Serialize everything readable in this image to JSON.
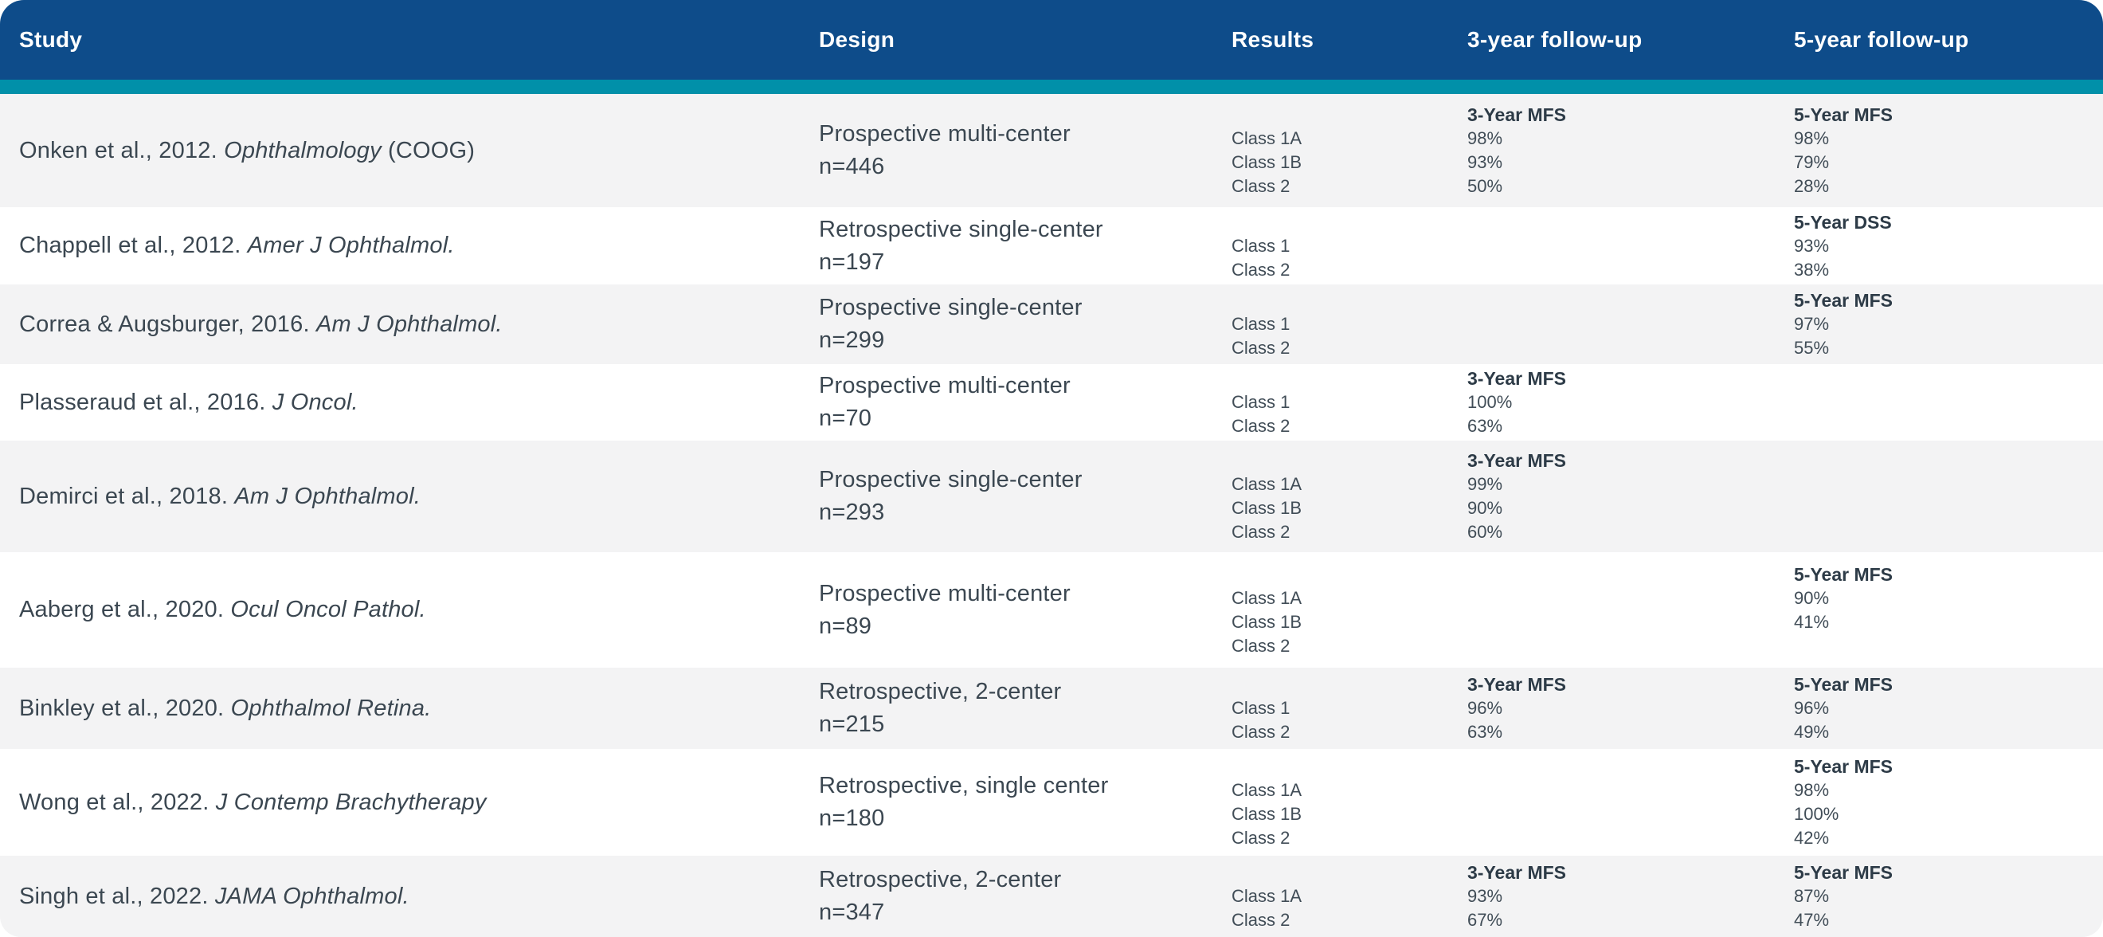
{
  "colors": {
    "header_bg": "#0e4c8a",
    "accent_bar": "#0190a9",
    "row_alt_bg": "#f3f3f4",
    "row_bg": "#ffffff",
    "header_text": "#ffffff",
    "body_text": "#3b4751",
    "bold_text": "#2d3b47"
  },
  "header": {
    "columns": [
      "Study",
      "Design",
      "Results",
      "3-year follow-up",
      "5-year follow-up"
    ]
  },
  "rows": [
    {
      "study": {
        "plain": "Onken et al., 2012. ",
        "italic": "Ophthalmology",
        "suffix": " (COOG)"
      },
      "design": [
        "Prospective multi-center",
        "n=446"
      ],
      "results_classes": [
        "Class 1A",
        "Class 1B",
        "Class 2"
      ],
      "followup_3yr": {
        "header": "3-Year MFS",
        "values": [
          "98%",
          "93%",
          "50%"
        ]
      },
      "followup_5yr": {
        "header": "5-Year MFS",
        "values": [
          "98%",
          "79%",
          "28%"
        ]
      }
    },
    {
      "study": {
        "plain": "Chappell et al., 2012. ",
        "italic": "Amer J Ophthalmol.",
        "suffix": ""
      },
      "design": [
        "Retrospective single-center",
        "n=197"
      ],
      "results_classes": [
        "Class 1",
        "Class 2"
      ],
      "followup_3yr": {
        "header": "",
        "values": []
      },
      "followup_5yr": {
        "header": "5-Year DSS",
        "values": [
          "93%",
          "38%"
        ]
      }
    },
    {
      "study": {
        "plain": "Correa & Augsburger, 2016. ",
        "italic": "Am J Ophthalmol.",
        "suffix": ""
      },
      "design": [
        "Prospective single-center",
        "n=299"
      ],
      "results_classes": [
        "Class 1",
        "Class 2"
      ],
      "followup_3yr": {
        "header": "",
        "values": []
      },
      "followup_5yr": {
        "header": "5-Year MFS",
        "values": [
          "97%",
          "55%"
        ]
      }
    },
    {
      "study": {
        "plain": "Plasseraud et al., 2016. ",
        "italic": "J Oncol.",
        "suffix": ""
      },
      "design": [
        "Prospective multi-center",
        "n=70"
      ],
      "results_classes": [
        "Class 1",
        "Class 2"
      ],
      "followup_3yr": {
        "header": "3-Year MFS",
        "values": [
          "100%",
          "63%"
        ]
      },
      "followup_5yr": {
        "header": "",
        "values": []
      }
    },
    {
      "study": {
        "plain": "Demirci et al., 2018. ",
        "italic": "Am J Ophthalmol.",
        "suffix": ""
      },
      "design": [
        "Prospective single-center",
        "n=293"
      ],
      "results_classes": [
        "Class 1A",
        "Class 1B",
        "Class 2"
      ],
      "followup_3yr": {
        "header": "3-Year MFS",
        "values": [
          "99%",
          "90%",
          "60%"
        ]
      },
      "followup_5yr": {
        "header": "",
        "values": []
      }
    },
    {
      "study": {
        "plain": "Aaberg et al., 2020. ",
        "italic": "Ocul Oncol Pathol.",
        "suffix": ""
      },
      "design": [
        "Prospective multi-center",
        "n=89"
      ],
      "results_classes": [
        "Class 1A",
        "Class 1B",
        "Class 2"
      ],
      "followup_3yr": {
        "header": "",
        "values": []
      },
      "followup_5yr": {
        "header": "5-Year MFS",
        "values": [
          "90%",
          "41%"
        ]
      }
    },
    {
      "study": {
        "plain": "Binkley et al., 2020. ",
        "italic": "Ophthalmol Retina.",
        "suffix": ""
      },
      "design": [
        "Retrospective, 2-center",
        "n=215"
      ],
      "results_classes": [
        "Class 1",
        "Class 2"
      ],
      "followup_3yr": {
        "header": "3-Year MFS",
        "values": [
          "96%",
          "63%"
        ]
      },
      "followup_5yr": {
        "header": "5-Year MFS",
        "values": [
          "96%",
          "49%"
        ]
      }
    },
    {
      "study": {
        "plain": "Wong et al., 2022. ",
        "italic": "J Contemp Brachytherapy",
        "suffix": ""
      },
      "design": [
        "Retrospective, single center",
        "n=180"
      ],
      "results_classes": [
        "Class 1A",
        "Class 1B",
        "Class 2"
      ],
      "followup_3yr": {
        "header": "",
        "values": []
      },
      "followup_5yr": {
        "header": "5-Year MFS",
        "values": [
          "98%",
          "100%",
          "42%"
        ]
      }
    },
    {
      "study": {
        "plain": "Singh et al., 2022. ",
        "italic": "JAMA Ophthalmol.",
        "suffix": ""
      },
      "design": [
        "Retrospective, 2-center",
        "n=347"
      ],
      "results_classes": [
        "Class 1A",
        "Class 2"
      ],
      "followup_3yr": {
        "header": "3-Year MFS",
        "values": [
          "93%",
          "67%"
        ]
      },
      "followup_5yr": {
        "header": "5-Year MFS",
        "values": [
          "87%",
          "47%"
        ]
      }
    }
  ],
  "chart_data": {
    "type": "table",
    "columns": [
      "Study",
      "Design",
      "Results",
      "3-year follow-up",
      "5-year follow-up"
    ],
    "rows": [
      [
        "Onken et al., 2012. Ophthalmology (COOG)",
        "Prospective multi-center n=446",
        "Class 1A; Class 1B; Class 2",
        "3-Year MFS: 98%, 93%, 50%",
        "5-Year MFS: 98%, 79%, 28%"
      ],
      [
        "Chappell et al., 2012. Amer J Ophthalmol.",
        "Retrospective single-center n=197",
        "Class 1; Class 2",
        "",
        "5-Year DSS: 93%, 38%"
      ],
      [
        "Correa & Augsburger, 2016. Am J Ophthalmol.",
        "Prospective single-center n=299",
        "Class 1; Class 2",
        "",
        "5-Year MFS: 97%, 55%"
      ],
      [
        "Plasseraud et al., 2016. J Oncol.",
        "Prospective multi-center n=70",
        "Class 1; Class 2",
        "3-Year MFS: 100%, 63%",
        ""
      ],
      [
        "Demirci et al., 2018. Am J Ophthalmol.",
        "Prospective single-center n=293",
        "Class 1A; Class 1B; Class 2",
        "3-Year MFS: 99%, 90%, 60%",
        ""
      ],
      [
        "Aaberg et al., 2020. Ocul Oncol Pathol.",
        "Prospective multi-center n=89",
        "Class 1A; Class 1B; Class 2",
        "",
        "5-Year MFS: 90%, 41%"
      ],
      [
        "Binkley et al., 2020. Ophthalmol Retina.",
        "Retrospective, 2-center n=215",
        "Class 1; Class 2",
        "3-Year MFS: 96%, 63%",
        "5-Year MFS: 96%, 49%"
      ],
      [
        "Wong et al., 2022. J Contemp Brachytherapy",
        "Retrospective, single center n=180",
        "Class 1A; Class 1B; Class 2",
        "",
        "5-Year MFS: 98%, 100%, 42%"
      ],
      [
        "Singh et al., 2022. JAMA Ophthalmol.",
        "Retrospective, 2-center n=347",
        "Class 1A; Class 2",
        "3-Year MFS: 93%, 67%",
        "5-Year MFS: 87%, 47%"
      ]
    ]
  }
}
